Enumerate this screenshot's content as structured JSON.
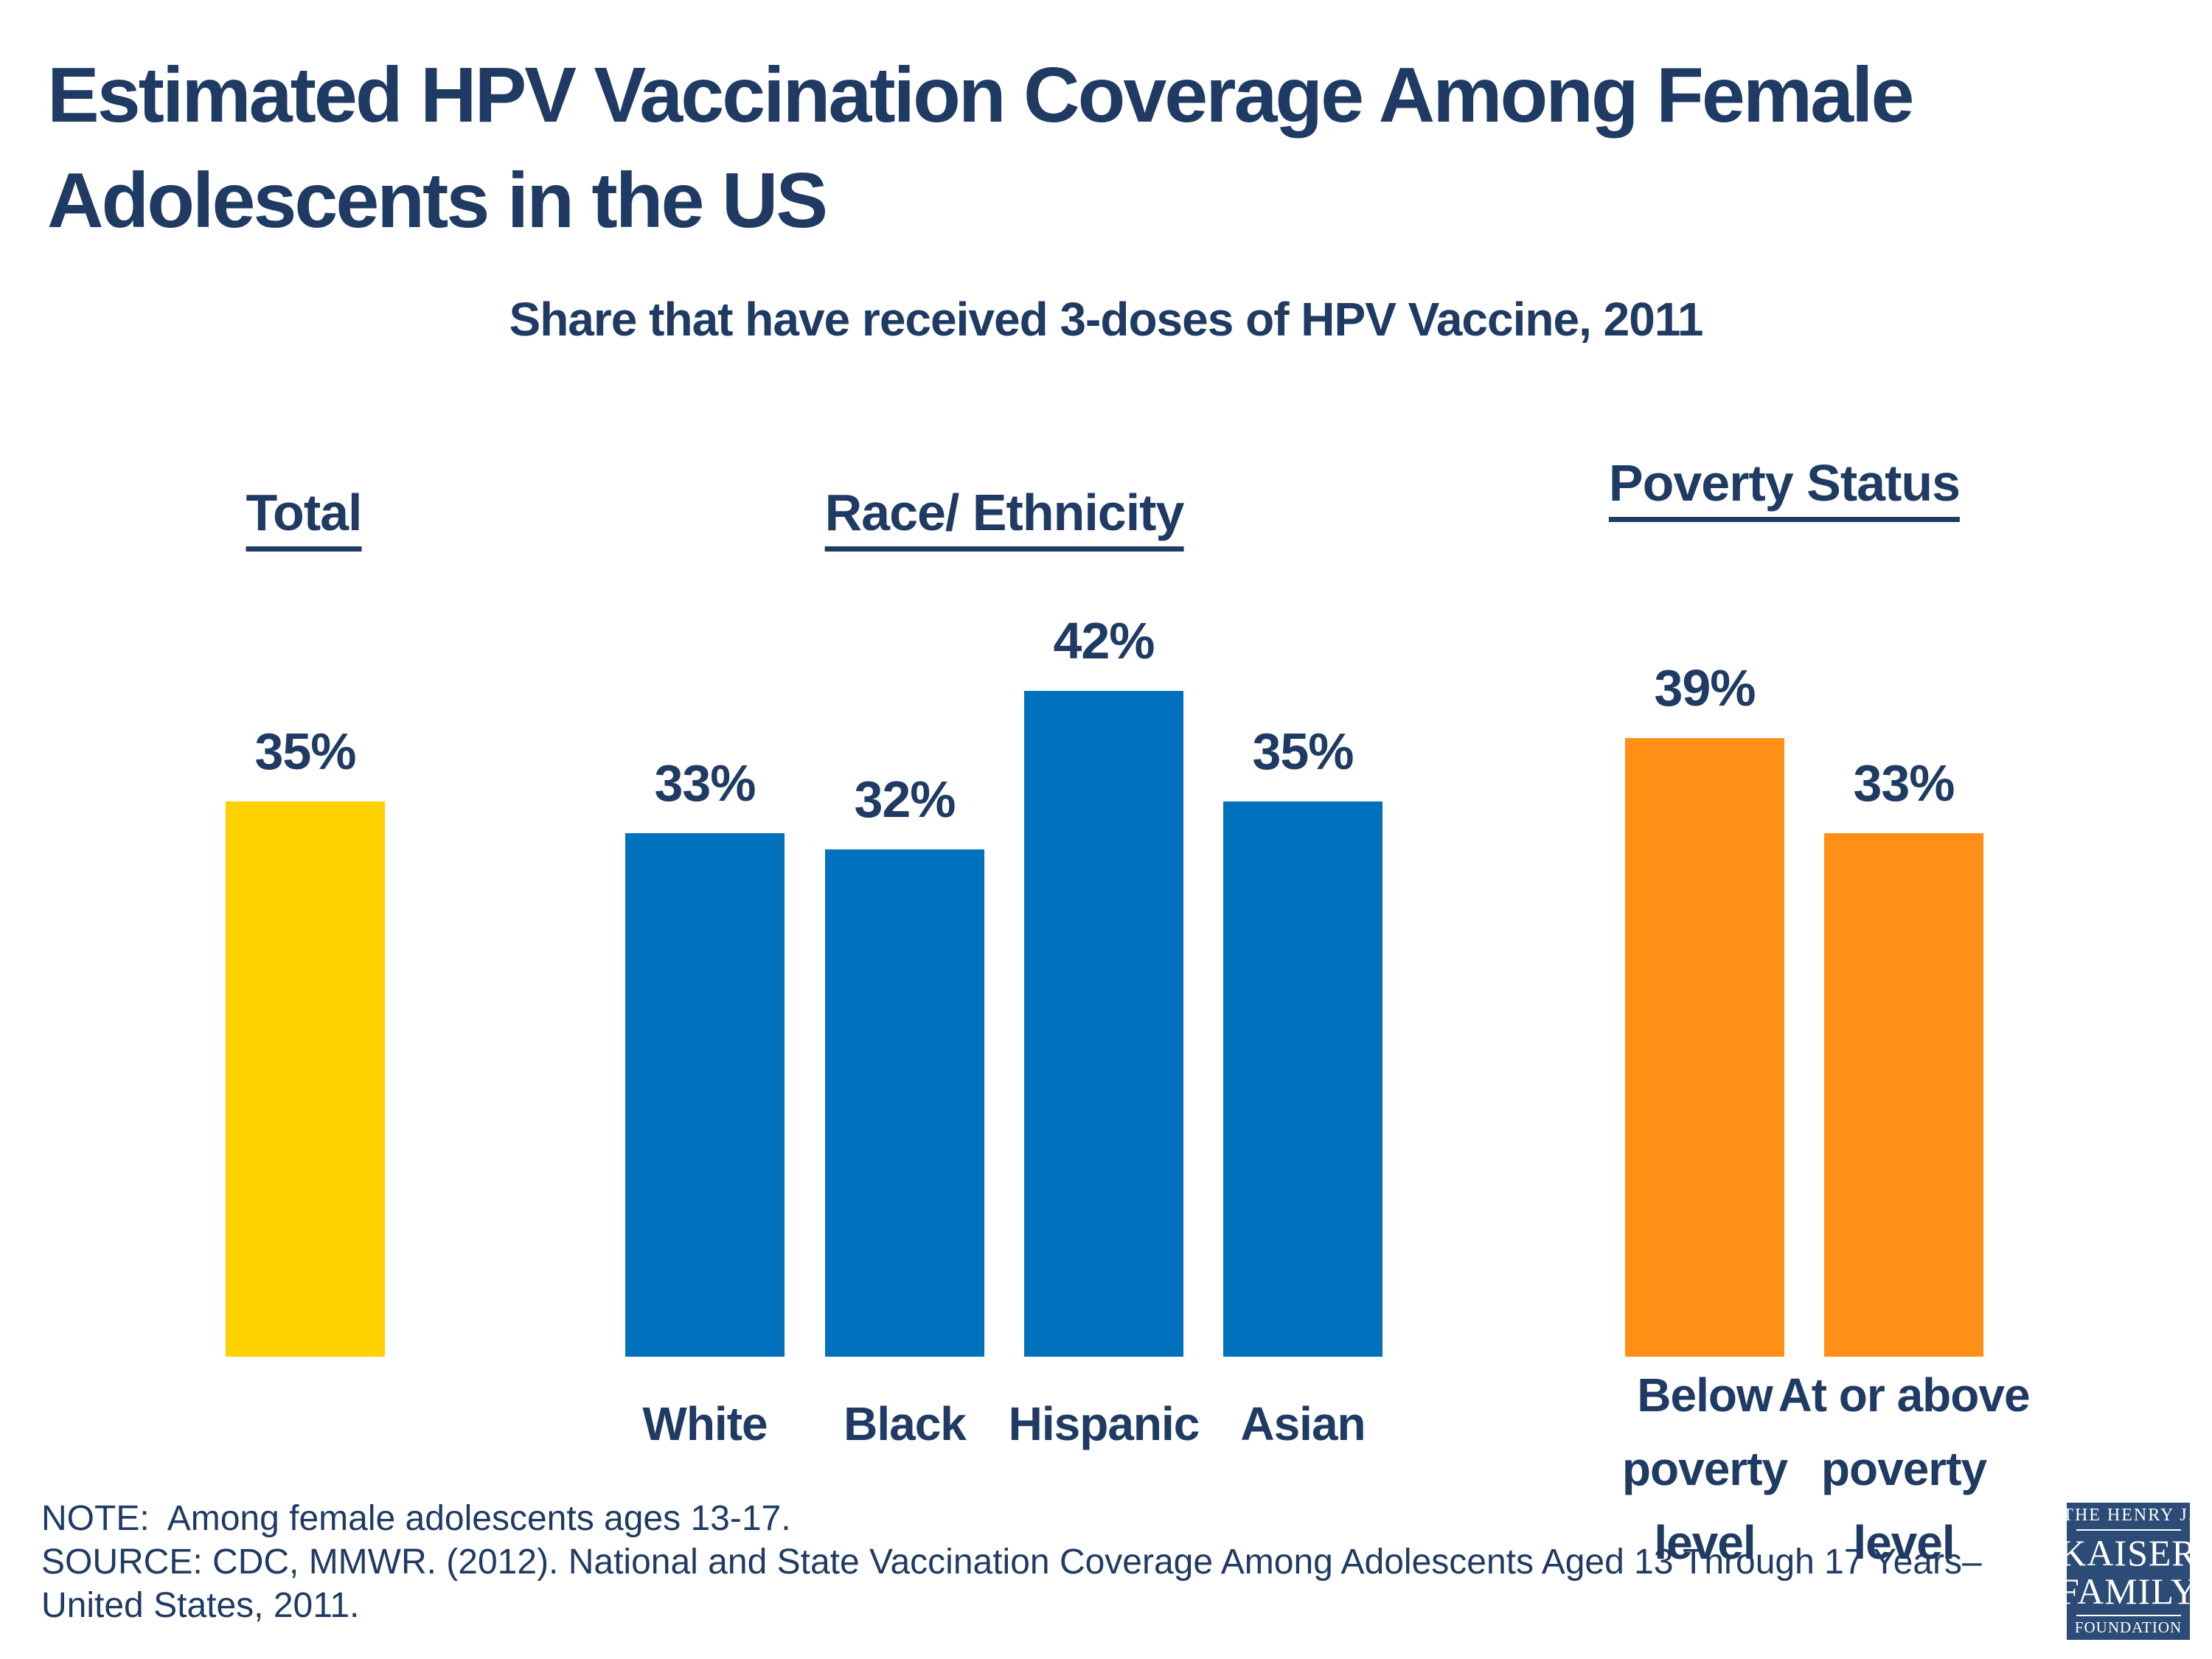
{
  "slide": {
    "title_line1": "Estimated HPV Vaccination Coverage Among Female",
    "title_line2": "Adolescents in the US",
    "text_color": "#1F3B64",
    "background_color": "#FFFFFF"
  },
  "chart_data": {
    "type": "bar",
    "title": "Share that have received 3-doses of HPV Vaccine, 2011",
    "unit": "percent",
    "ylim": [
      0,
      46
    ],
    "grid": false,
    "value_axis_hidden": true,
    "legend": "none",
    "bar_colors": {
      "total": "#FFD100",
      "race_ethnicity": "#0071BC",
      "poverty_status": "#FF9015"
    },
    "groups": [
      {
        "header": "Total",
        "bars": [
          {
            "category": "Total",
            "value": 35,
            "label": "35%",
            "color": "#FFD100"
          }
        ]
      },
      {
        "header": "Race/ Ethnicity",
        "bars": [
          {
            "category": "White",
            "value": 33,
            "label": "33%",
            "color": "#0071BC"
          },
          {
            "category": "Black",
            "value": 32,
            "label": "32%",
            "color": "#0071BC"
          },
          {
            "category": "Hispanic",
            "value": 42,
            "label": "42%",
            "color": "#0071BC"
          },
          {
            "category": "Asian",
            "value": 35,
            "label": "35%",
            "color": "#0071BC"
          }
        ]
      },
      {
        "header": "Poverty Status",
        "bars": [
          {
            "category": "Below poverty level",
            "category_lines": [
              "Below",
              "poverty",
              "level"
            ],
            "value": 39,
            "label": "39%",
            "color": "#FF9015"
          },
          {
            "category": "At or above poverty level",
            "category_lines": [
              "At or above",
              "poverty",
              "level"
            ],
            "value": 33,
            "label": "33%",
            "color": "#FF9015"
          }
        ]
      }
    ]
  },
  "notes": {
    "line1": "NOTE:  Among female adolescents ages 13-17.",
    "line2": "SOURCE: CDC, MMWR. (2012). National and State Vaccination Coverage Among Adolescents Aged 13 Through 17 Years–",
    "line3": "United States, 2011."
  },
  "logo": {
    "line1": "THE HENRY J.",
    "line2": "KAISER",
    "line3": "FAMILY",
    "line4": "FOUNDATION",
    "bg_color": "#2C4B76"
  }
}
